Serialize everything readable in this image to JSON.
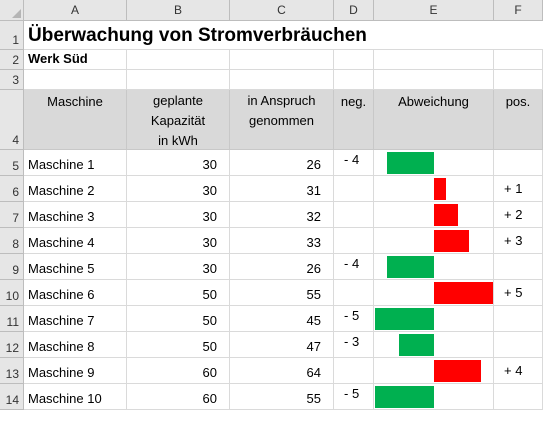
{
  "columns": [
    "A",
    "B",
    "C",
    "D",
    "E",
    "F"
  ],
  "rows": [
    "1",
    "2",
    "3",
    "4",
    "5",
    "6",
    "7",
    "8",
    "9",
    "10",
    "11",
    "12",
    "13",
    "14"
  ],
  "title": "Überwachung von Stromverbräuchen",
  "subtitle": "Werk Süd",
  "headers": {
    "machine": "Maschine",
    "planned": [
      "geplante",
      "Kapazität",
      "in kWh"
    ],
    "used": [
      "in Anspruch",
      "genommen"
    ],
    "neg": "neg.",
    "deviation": "Abweichung",
    "pos": "pos."
  },
  "data": [
    {
      "name": "Maschine 1",
      "planned": "30",
      "used": "26",
      "neg": "- 4",
      "pos": "",
      "deviation": -4
    },
    {
      "name": "Maschine 2",
      "planned": "30",
      "used": "31",
      "neg": "",
      "pos": "+ 1",
      "deviation": 1
    },
    {
      "name": "Maschine 3",
      "planned": "30",
      "used": "32",
      "neg": "",
      "pos": "+ 2",
      "deviation": 2
    },
    {
      "name": "Maschine 4",
      "planned": "30",
      "used": "33",
      "neg": "",
      "pos": "+ 3",
      "deviation": 3
    },
    {
      "name": "Maschine 5",
      "planned": "30",
      "used": "26",
      "neg": "- 4",
      "pos": "",
      "deviation": -4
    },
    {
      "name": "Maschine 6",
      "planned": "50",
      "used": "55",
      "neg": "",
      "pos": "+ 5",
      "deviation": 5
    },
    {
      "name": "Maschine 7",
      "planned": "50",
      "used": "45",
      "neg": "- 5",
      "pos": "",
      "deviation": -5
    },
    {
      "name": "Maschine 8",
      "planned": "50",
      "used": "47",
      "neg": "- 3",
      "pos": "",
      "deviation": -3
    },
    {
      "name": "Maschine 9",
      "planned": "60",
      "used": "64",
      "neg": "",
      "pos": "+ 4",
      "deviation": 4
    },
    {
      "name": "Maschine 10",
      "planned": "60",
      "used": "55",
      "neg": "- 5",
      "pos": "",
      "deviation": -5
    }
  ],
  "colors": {
    "negative": "#00b050",
    "positive": "#ff0000",
    "header_fill": "#d9d9d9"
  }
}
